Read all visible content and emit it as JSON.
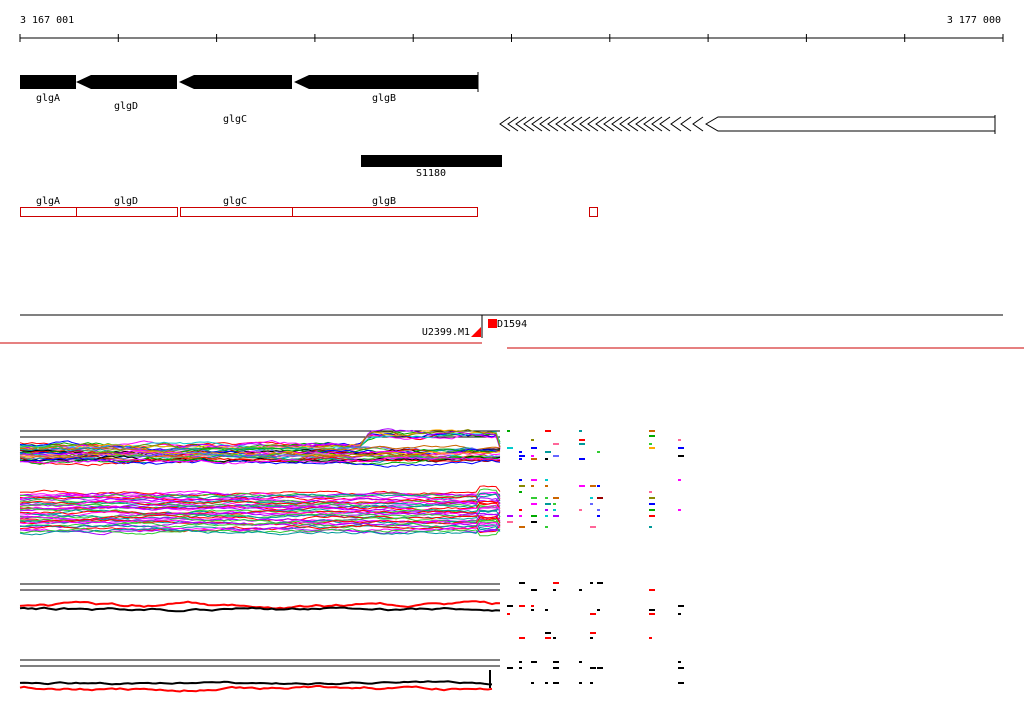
{
  "ruler": {
    "start_label": "3 167 001",
    "end_label": "3 177 000",
    "tick_count": 11
  },
  "genes": [
    {
      "name": "glgA",
      "strand": "-"
    },
    {
      "name": "glgD",
      "strand": "-"
    },
    {
      "name": "glgC",
      "strand": "-"
    },
    {
      "name": "glgB",
      "strand": "-"
    }
  ],
  "antisense_feature": {
    "label": "S1180"
  },
  "annotation_boxes": [
    {
      "name": "glgA"
    },
    {
      "name": "glgD"
    },
    {
      "name": "glgC"
    },
    {
      "name": "glgB"
    }
  ],
  "probes": [
    {
      "label": "U2399.M1"
    },
    {
      "label": "D1594"
    }
  ],
  "colors": {
    "gene": "#000000",
    "annotation_box": "#cc0000",
    "marker": "#ff0000",
    "axis": "#000000"
  },
  "expression_tracks": [
    {
      "id": "track-1",
      "style": "multicolor"
    },
    {
      "id": "track-2",
      "style": "multicolor"
    },
    {
      "id": "track-3",
      "style": "black-red"
    },
    {
      "id": "track-4",
      "style": "black-red"
    }
  ]
}
